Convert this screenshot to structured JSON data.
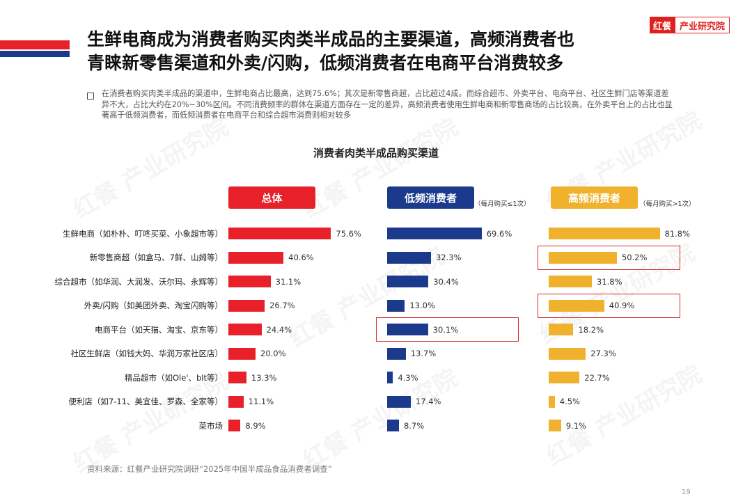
{
  "header": {
    "title_line1": "生鲜电商成为消费者购买肉类半成品的主要渠道，高频消费者也",
    "title_line2": "青睐新零售渠道和外卖/闪购，低频消费者在电商平台消费较多",
    "logo_mark": "红餐",
    "logo_text": "产业研究院"
  },
  "description": "在消费者购买肉类半成品的渠道中，生鲜电商占比最高，达到75.6%；其次是新零售商超，占比超过4成。而综合超市、外卖平台、电商平台、社区生鲜门店等渠道差异不大，占比大约在20%~30%区间。不同消费频率的群体在渠道方面存在一定的差异，高频消费者使用生鲜电商和新零售商场的占比较高，在外卖平台上的占比也显著高于低频消费者，而低频消费者在电商平台和综合超市消费则相对较多",
  "watermark": "红餐 产业研究院",
  "colors": {
    "red": "#e8202a",
    "navy": "#1c3a8c",
    "gold": "#f0b12c",
    "highlight": "#d12b2b"
  },
  "chart_data": {
    "type": "bar",
    "title": "消费者肉类半成品购买渠道",
    "categories": [
      "生鲜电商（如朴朴、叮咚买菜、小象超市等）",
      "新零售商超（如盒马、7鲜、山姆等）",
      "综合超市（如华润、大润发、沃尔玛、永辉等）",
      "外卖/闪购（如美团外卖、淘宝闪购等）",
      "电商平台（如天猫、淘宝、京东等）",
      "社区生鲜店（如钱大妈、华润万家社区店）",
      "精品超市（如Ole'、blt等）",
      "便利店（如7-11、美宜佳、罗森、全家等）",
      "菜市场"
    ],
    "series": [
      {
        "name": "总体",
        "note": "",
        "values": [
          75.6,
          40.6,
          31.1,
          26.7,
          24.4,
          20.0,
          13.3,
          11.1,
          8.9
        ],
        "labels": [
          "75.6%",
          "40.6%",
          "31.1%",
          "26.7%",
          "24.4%",
          "20.0%",
          "13.3%",
          "11.1%",
          "8.9%"
        ]
      },
      {
        "name": "低频消费者",
        "note": "（每月购买≤1次）",
        "values": [
          69.6,
          32.3,
          30.4,
          13.0,
          30.1,
          13.7,
          4.3,
          17.4,
          8.7
        ],
        "labels": [
          "69.6%",
          "32.3%",
          "30.4%",
          "13.0%",
          "30.1%",
          "13.7%",
          "4.3%",
          "17.4%",
          "8.7%"
        ]
      },
      {
        "name": "高频消费者",
        "note": "（每月购买>1次）",
        "values": [
          81.8,
          50.2,
          31.8,
          40.9,
          18.2,
          27.3,
          22.7,
          4.5,
          9.1
        ],
        "labels": [
          "81.8%",
          "50.2%",
          "31.8%",
          "40.9%",
          "18.2%",
          "27.3%",
          "22.7%",
          "4.5%",
          "9.1%"
        ]
      }
    ],
    "highlights": [
      {
        "series": 1,
        "category": 4
      },
      {
        "series": 2,
        "category": 1
      },
      {
        "series": 2,
        "category": 3
      }
    ],
    "grid": false,
    "legend": "none"
  },
  "footer": {
    "source": "资料来源：红餐产业研究院调研“2025年中国半成品食品消费者调查”",
    "page_number": "19"
  }
}
